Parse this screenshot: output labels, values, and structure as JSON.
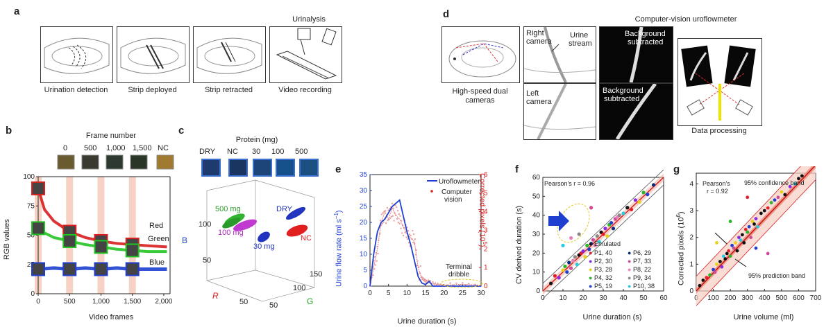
{
  "panel_a": {
    "letter": "a",
    "header": "Urinalysis",
    "captions": [
      "Urination detection",
      "Strip deployed",
      "Strip retracted",
      "Video recording"
    ]
  },
  "panel_d": {
    "letter": "d",
    "header": "Computer-vision uroflowmeter",
    "cam_caption_1": "High-speed dual",
    "cam_caption_2": "cameras",
    "right_camera_1": "Right",
    "right_camera_2": "camera",
    "urine_stream_1": "Urine",
    "urine_stream_2": "stream",
    "left_camera_1": "Left",
    "left_camera_2": "camera",
    "bg_sub_1": "Background",
    "bg_sub_2": "subtracted",
    "data_processing": "Data processing"
  },
  "panel_b": {
    "letter": "b",
    "header": "Frame number",
    "frame_labels": [
      "0",
      "500",
      "1,000",
      "1,500",
      "NC"
    ],
    "ylabel": "RGB values",
    "xlabel": "Video frames",
    "yticks": [
      "0",
      "25",
      "50",
      "75",
      "100"
    ],
    "xticks": [
      "0",
      "500",
      "1,000",
      "1,500",
      "2,000"
    ],
    "legend": [
      "Red",
      "Green",
      "Blue"
    ]
  },
  "panel_c": {
    "letter": "c",
    "header": "Protein (mg)",
    "swatch_labels": [
      "DRY",
      "NC",
      "30",
      "100",
      "500"
    ],
    "cluster_labels": [
      "500 mg",
      "DRY",
      "100 mg",
      "NC",
      "30 mg"
    ],
    "axis_r": "R",
    "axis_g": "G",
    "axis_b": "B",
    "ticks_z": [
      "50",
      "100"
    ],
    "ticks_r": [
      "50"
    ],
    "ticks_g": [
      "50",
      "100",
      "150"
    ]
  },
  "panel_e": {
    "letter": "e",
    "ylabel_left": "Urine flow rate (ml s",
    "ylabel_left_sup": "−1",
    "ylabel_left_end": ")",
    "ylabel_right": "Corrected pixels (10",
    "ylabel_right_sup": "5",
    "ylabel_right_end": ")",
    "xlabel": "Urine duration (s)",
    "yticks_left": [
      "0",
      "5",
      "10",
      "15",
      "20",
      "25",
      "30",
      "35"
    ],
    "yticks_right": [
      "0",
      "1",
      "2",
      "3",
      "4",
      "5",
      "6"
    ],
    "xticks": [
      "0",
      "5",
      "10",
      "15",
      "20",
      "25",
      "30"
    ],
    "legend_uro": "Uroflowmeter",
    "legend_cv_1": "Computer",
    "legend_cv_2": "vision",
    "annot_1": "Terminal",
    "annot_2": "dribble"
  },
  "panel_f": {
    "letter": "f",
    "ylabel": "CV derived duration (s)",
    "xlabel": "Urine duration (s)",
    "ticks": [
      "0",
      "10",
      "20",
      "30",
      "40",
      "50",
      "60"
    ],
    "pearson": "Pearson's r = 0.96",
    "legend": [
      "Emulated",
      "P1, 40",
      "P2, 30",
      "P3, 28",
      "P4, 32",
      "P5, 19",
      "P6, 29",
      "P7, 33",
      "P8, 22",
      "P9, 34",
      "P10, 38"
    ],
    "legend_colors": [
      "#111111",
      "#e0202a",
      "#8a2be2",
      "#e6d21a",
      "#2ab52a",
      "#1f3fd0",
      "#0a2a7a",
      "#d04a9a",
      "#e87fb8",
      "#888888",
      "#29c9e0"
    ]
  },
  "panel_g": {
    "letter": "g",
    "ylabel": "Corrected pixels (10",
    "ylabel_sup": "6",
    "ylabel_end": ")",
    "xlabel": "Urine volume (ml)",
    "yticks": [
      "0",
      "1",
      "2",
      "3",
      "4"
    ],
    "xticks": [
      "0",
      "100",
      "200",
      "300",
      "400",
      "500",
      "600",
      "700"
    ],
    "pearson_1": "Pearson's",
    "pearson_2": "r = 0.92",
    "conf_band": "95% confidence band",
    "pred_band": "95% prediction band"
  },
  "colors": {
    "red": "#d81e1e",
    "green": "#22c422",
    "blue": "#1f3fd0",
    "frame_strip": "#f3c7b5",
    "band": "#f2b8a8"
  },
  "chart_data": [
    {
      "id": "b",
      "type": "line",
      "xlabel": "Video frames",
      "ylabel": "RGB values",
      "xlim": [
        0,
        2100
      ],
      "ylim": [
        0,
        100
      ],
      "series": [
        {
          "name": "Red",
          "x": [
            0,
            100,
            250,
            500,
            750,
            1000,
            1250,
            1500,
            1750,
            2050
          ],
          "values": [
            90,
            72,
            62,
            53,
            48,
            45,
            43,
            42,
            41,
            40
          ]
        },
        {
          "name": "Green",
          "x": [
            0,
            100,
            250,
            500,
            750,
            1000,
            1250,
            1500,
            1750,
            2050
          ],
          "values": [
            56,
            52,
            48,
            45,
            42,
            40,
            38,
            37,
            36,
            36
          ]
        },
        {
          "name": "Blue",
          "x": [
            0,
            250,
            500,
            750,
            1000,
            1250,
            1500,
            1750,
            2050
          ],
          "values": [
            21,
            22,
            21,
            22,
            21,
            22,
            21,
            21,
            21
          ]
        }
      ]
    },
    {
      "id": "e",
      "type": "line",
      "xlabel": "Urine duration (s)",
      "xlim": [
        0,
        30
      ],
      "ylim_left": [
        0,
        35
      ],
      "ylim_right": [
        0,
        6
      ],
      "series": [
        {
          "name": "Uroflowmeter",
          "x": [
            0,
            1,
            2,
            3,
            4,
            5,
            6,
            7,
            8,
            9,
            10,
            11,
            12,
            13,
            14,
            15,
            16,
            17,
            20,
            25,
            30
          ],
          "values": [
            0,
            10,
            17,
            20,
            21,
            23,
            25,
            26,
            27,
            22,
            17,
            13,
            8,
            3,
            1,
            0.5,
            1.5,
            0,
            0,
            0,
            0
          ]
        },
        {
          "name": "Computer vision",
          "x": [
            0,
            1,
            2,
            3,
            4,
            5,
            6,
            7,
            8,
            9,
            10,
            11,
            12,
            13,
            14,
            15,
            16,
            18,
            20,
            25,
            30
          ],
          "values": [
            0,
            1.0,
            2.0,
            3.4,
            4.0,
            3.6,
            4.2,
            3.8,
            3.6,
            3.2,
            2.8,
            2.6,
            2.4,
            1.0,
            0.4,
            0.3,
            0.2,
            0.1,
            0.05,
            0.1,
            0.05
          ]
        }
      ]
    },
    {
      "id": "f",
      "type": "scatter",
      "xlabel": "Urine duration (s)",
      "ylabel": "CV derived duration (s)",
      "xlim": [
        0,
        60
      ],
      "ylim": [
        0,
        60
      ],
      "points": [
        [
          4,
          4
        ],
        [
          6,
          8
        ],
        [
          8,
          7
        ],
        [
          10,
          11
        ],
        [
          11,
          13
        ],
        [
          12,
          10
        ],
        [
          13,
          15
        ],
        [
          14,
          12
        ],
        [
          15,
          16
        ],
        [
          16,
          18
        ],
        [
          17,
          14
        ],
        [
          18,
          19
        ],
        [
          19,
          20
        ],
        [
          20,
          21
        ],
        [
          21,
          18
        ],
        [
          22,
          24
        ],
        [
          23,
          22
        ],
        [
          24,
          25
        ],
        [
          25,
          27
        ],
        [
          26,
          24
        ],
        [
          27,
          29
        ],
        [
          28,
          26
        ],
        [
          29,
          31
        ],
        [
          30,
          30
        ],
        [
          31,
          33
        ],
        [
          32,
          29
        ],
        [
          33,
          35
        ],
        [
          34,
          36
        ],
        [
          35,
          33
        ],
        [
          36,
          38
        ],
        [
          37,
          39
        ],
        [
          38,
          40
        ],
        [
          40,
          41
        ],
        [
          42,
          44
        ],
        [
          44,
          43
        ],
        [
          46,
          48
        ],
        [
          48,
          47
        ],
        [
          50,
          52
        ],
        [
          52,
          51
        ],
        [
          55,
          56
        ],
        [
          24,
          44
        ],
        [
          14,
          28
        ],
        [
          18,
          30
        ],
        [
          10,
          24
        ]
      ]
    },
    {
      "id": "g",
      "type": "scatter",
      "xlabel": "Urine volume (ml)",
      "ylabel": "Corrected pixels",
      "xlim": [
        0,
        700
      ],
      "ylim": [
        0,
        4.4
      ],
      "points": [
        [
          20,
          0.2
        ],
        [
          40,
          0.4
        ],
        [
          60,
          0.5
        ],
        [
          80,
          0.6
        ],
        [
          100,
          0.8
        ],
        [
          110,
          0.7
        ],
        [
          120,
          1.0
        ],
        [
          140,
          1.1
        ],
        [
          150,
          0.9
        ],
        [
          160,
          1.3
        ],
        [
          170,
          1.2
        ],
        [
          180,
          1.4
        ],
        [
          190,
          1.5
        ],
        [
          200,
          1.3
        ],
        [
          210,
          1.7
        ],
        [
          220,
          1.6
        ],
        [
          230,
          1.8
        ],
        [
          240,
          1.5
        ],
        [
          250,
          2.0
        ],
        [
          260,
          1.9
        ],
        [
          270,
          2.1
        ],
        [
          280,
          1.8
        ],
        [
          290,
          2.3
        ],
        [
          300,
          2.2
        ],
        [
          310,
          2.4
        ],
        [
          320,
          2.0
        ],
        [
          330,
          2.6
        ],
        [
          340,
          2.5
        ],
        [
          350,
          2.7
        ],
        [
          360,
          2.4
        ],
        [
          380,
          2.9
        ],
        [
          400,
          3.0
        ],
        [
          420,
          3.1
        ],
        [
          440,
          3.3
        ],
        [
          460,
          3.4
        ],
        [
          480,
          3.5
        ],
        [
          500,
          3.7
        ],
        [
          520,
          3.6
        ],
        [
          550,
          3.9
        ],
        [
          580,
          4.0
        ],
        [
          600,
          4.2
        ],
        [
          620,
          4.3
        ],
        [
          300,
          3.5
        ],
        [
          200,
          2.6
        ],
        [
          350,
          1.6
        ],
        [
          420,
          1.4
        ],
        [
          120,
          1.8
        ]
      ]
    }
  ]
}
